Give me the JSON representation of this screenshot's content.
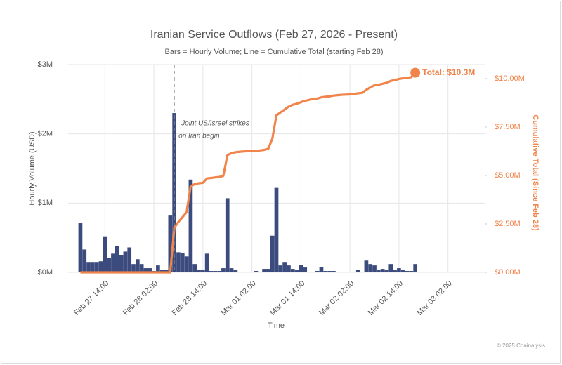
{
  "chart_data": {
    "type": "combo",
    "title": "Iranian Service Outflows (Feb 27, 2026 - Present)",
    "subtitle": "Bars = Hourly Volume; Line = Cumulative Total (starting Feb 28)",
    "x_label": "Time",
    "y_label": "Hourly Volume (USD)",
    "y2_label": "Cumulative Total (Since Feb 28)",
    "footer": "© 2025 Chainalysis",
    "grid": true,
    "xlim": [
      "Feb 27 05:00",
      "Mar 03 11:00"
    ],
    "xticks": [
      "Feb 27 14:00",
      "Feb 28 02:00",
      "Feb 28 14:00",
      "Mar 01 02:00",
      "Mar 01 14:00",
      "Mar 02 02:00",
      "Mar 02 14:00",
      "Mar 03 02:00"
    ],
    "ylim": [
      0,
      3
    ],
    "yticks": [
      {
        "value": 0,
        "label": "$0M"
      },
      {
        "value": 1,
        "label": "$1M"
      },
      {
        "value": 2,
        "label": "$2M"
      },
      {
        "value": 3,
        "label": "$3M"
      }
    ],
    "y2lim": [
      0,
      10.72
    ],
    "y2ticks": [
      {
        "value": 0,
        "label": "$0.00M"
      },
      {
        "value": 2.5,
        "label": "$2.50M"
      },
      {
        "value": 5,
        "label": "$5.00M"
      },
      {
        "value": 7.5,
        "label": "$7.50M"
      },
      {
        "value": 10,
        "label": "$10.00M"
      }
    ],
    "x": [
      "Feb 27 08:00",
      "Feb 27 09:00",
      "Feb 27 10:00",
      "Feb 27 11:00",
      "Feb 27 12:00",
      "Feb 27 13:00",
      "Feb 27 14:00",
      "Feb 27 15:00",
      "Feb 27 16:00",
      "Feb 27 17:00",
      "Feb 27 18:00",
      "Feb 27 19:00",
      "Feb 27 20:00",
      "Feb 27 21:00",
      "Feb 27 22:00",
      "Feb 27 23:00",
      "Feb 28 00:00",
      "Feb 28 01:00",
      "Feb 28 02:00",
      "Feb 28 03:00",
      "Feb 28 04:00",
      "Feb 28 05:00",
      "Feb 28 06:00",
      "Feb 28 07:00",
      "Feb 28 08:00",
      "Feb 28 09:00",
      "Feb 28 10:00",
      "Feb 28 11:00",
      "Feb 28 12:00",
      "Feb 28 13:00",
      "Feb 28 14:00",
      "Feb 28 15:00",
      "Feb 28 16:00",
      "Feb 28 17:00",
      "Feb 28 18:00",
      "Feb 28 19:00",
      "Feb 28 20:00",
      "Feb 28 21:00",
      "Feb 28 22:00",
      "Feb 28 23:00",
      "Mar 01 00:00",
      "Mar 01 01:00",
      "Mar 01 02:00",
      "Mar 01 03:00",
      "Mar 01 04:00",
      "Mar 01 05:00",
      "Mar 01 06:00",
      "Mar 01 07:00",
      "Mar 01 08:00",
      "Mar 01 09:00",
      "Mar 01 10:00",
      "Mar 01 11:00",
      "Mar 01 12:00",
      "Mar 01 13:00",
      "Mar 01 14:00",
      "Mar 01 15:00",
      "Mar 01 16:00",
      "Mar 01 17:00",
      "Mar 01 18:00",
      "Mar 01 19:00",
      "Mar 01 20:00",
      "Mar 01 21:00",
      "Mar 01 22:00",
      "Mar 01 23:00",
      "Mar 02 00:00",
      "Mar 02 01:00",
      "Mar 02 02:00",
      "Mar 02 03:00",
      "Mar 02 04:00",
      "Mar 02 05:00",
      "Mar 02 06:00",
      "Mar 02 07:00",
      "Mar 02 08:00",
      "Mar 02 09:00",
      "Mar 02 10:00",
      "Mar 02 11:00",
      "Mar 02 12:00",
      "Mar 02 13:00",
      "Mar 02 14:00",
      "Mar 02 15:00",
      "Mar 02 16:00",
      "Mar 02 17:00",
      "Mar 02 18:00"
    ],
    "series": [
      {
        "type": "bar",
        "color": "#3c4b7e",
        "values": [
          0.71,
          0.33,
          0.15,
          0.15,
          0.15,
          0.16,
          0.52,
          0.21,
          0.27,
          0.38,
          0.25,
          0.3,
          0.36,
          0.12,
          0.19,
          0.12,
          0.06,
          0.06,
          0.02,
          0.1,
          0.04,
          0.04,
          0.82,
          2.3,
          0.29,
          0.28,
          0.23,
          1.34,
          0.12,
          0.04,
          0.03,
          0.27,
          0.02,
          0.02,
          0.02,
          0.06,
          1.07,
          0.06,
          0.03,
          0.01,
          0.01,
          0.01,
          0.01,
          0.02,
          0.01,
          0.05,
          0.05,
          0.53,
          1.22,
          0.1,
          0.15,
          0.1,
          0.05,
          0.03,
          0.11,
          0.07,
          0.01,
          0.01,
          0.02,
          0.08,
          0.02,
          0.02,
          0.02,
          0.01,
          0.01,
          0.01,
          0.0,
          0.01,
          0.04,
          0.01,
          0.17,
          0.12,
          0.1,
          0.03,
          0.05,
          0.03,
          0.12,
          0.03,
          0.06,
          0.03,
          0.02,
          0.02,
          0.12
        ]
      },
      {
        "type": "line",
        "axis": "y2",
        "color": "#f0844a",
        "values": [
          0,
          0,
          0,
          0,
          0,
          0,
          0,
          0,
          0,
          0,
          0,
          0,
          0,
          0,
          0,
          0,
          0,
          0,
          0,
          0,
          0,
          0,
          0,
          2.3,
          2.6,
          2.85,
          3.1,
          4.45,
          4.55,
          4.6,
          4.62,
          4.85,
          4.87,
          4.9,
          4.92,
          4.98,
          6.05,
          6.15,
          6.2,
          6.22,
          6.24,
          6.25,
          6.26,
          6.27,
          6.29,
          6.32,
          6.38,
          6.9,
          8.1,
          8.25,
          8.4,
          8.55,
          8.65,
          8.7,
          8.78,
          8.85,
          8.9,
          8.95,
          8.97,
          9.03,
          9.06,
          9.08,
          9.12,
          9.14,
          9.16,
          9.17,
          9.18,
          9.2,
          9.24,
          9.26,
          9.42,
          9.55,
          9.65,
          9.68,
          9.73,
          9.78,
          9.88,
          9.92,
          9.98,
          10.01,
          10.04,
          10.07,
          10.3
        ],
        "end_label": "Total: $10.3M"
      }
    ],
    "annotation": {
      "x": "Feb 28 07:00",
      "lines": [
        "Joint US/Israel strikes",
        "on Iran begin"
      ]
    }
  }
}
